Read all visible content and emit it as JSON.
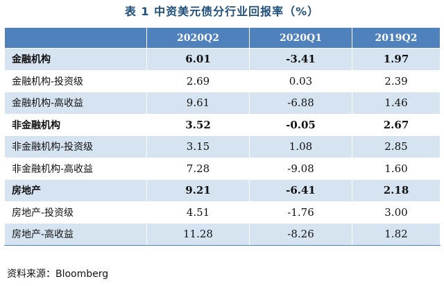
{
  "title": "表 1  中资美元债分行业回报率（%）",
  "table": {
    "header": {
      "label": "",
      "cols": [
        "2020Q2",
        "2020Q1",
        "2019Q2"
      ]
    },
    "rows": [
      {
        "label": "金融机构",
        "values": [
          "6.01",
          "-3.41",
          "1.97"
        ],
        "bold": true
      },
      {
        "label": "金融机构-投资级",
        "values": [
          "2.69",
          "0.03",
          "2.39"
        ],
        "bold": false
      },
      {
        "label": "金融机构-高收益",
        "values": [
          "9.61",
          "-6.88",
          "1.46"
        ],
        "bold": false
      },
      {
        "label": "非金融机构",
        "values": [
          "3.52",
          "-0.05",
          "2.67"
        ],
        "bold": true
      },
      {
        "label": "非金融机构-投资级",
        "values": [
          "3.15",
          "1.08",
          "2.85"
        ],
        "bold": false
      },
      {
        "label": "非金融机构-高收益",
        "values": [
          "7.28",
          "-9.08",
          "1.60"
        ],
        "bold": false
      },
      {
        "label": "房地产",
        "values": [
          "9.21",
          "-6.41",
          "2.18"
        ],
        "bold": true
      },
      {
        "label": "房地产-投资级",
        "values": [
          "4.51",
          "-1.76",
          "3.00"
        ],
        "bold": false
      },
      {
        "label": "房地产-高收益",
        "values": [
          "11.28",
          "-8.26",
          "1.82"
        ],
        "bold": false
      }
    ]
  },
  "source": "资料来源：Bloomberg",
  "colors": {
    "header_bg": "#4f81bd",
    "row_shade": "#d6e3f1",
    "title": "#1f4e79"
  }
}
